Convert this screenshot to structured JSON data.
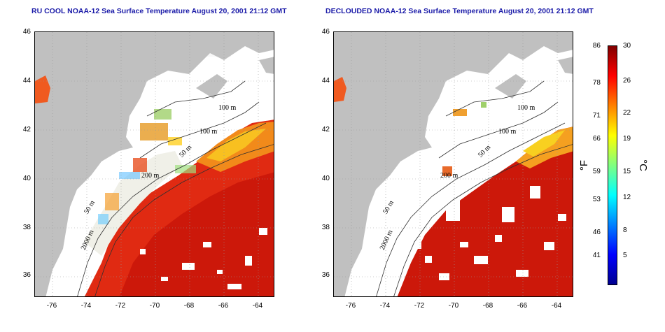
{
  "titles": {
    "left": "RU COOL NOAA-12 Sea Surface Temperature August 20, 2001 21:12 GMT",
    "right": "DECLOUDED NOAA-12 Sea Surface Temperature August 20, 2001 21:12 GMT"
  },
  "axes": {
    "lat_ticks": [
      "46",
      "44",
      "42",
      "40",
      "38",
      "36"
    ],
    "lon_ticks": [
      "-76",
      "-74",
      "-72",
      "-70",
      "-68",
      "-66",
      "-64"
    ],
    "lat_range": [
      35,
      46
    ],
    "lon_range": [
      -77,
      -63
    ]
  },
  "contour_labels": {
    "left": [
      "100 m",
      "100 m",
      "50 m",
      "200 m",
      "50 m",
      "2000 m"
    ],
    "right": [
      "100 m",
      "100 m",
      "50 m",
      "200 m",
      "50 m",
      "2000 m"
    ]
  },
  "colorbar": {
    "fahrenheit_ticks": [
      "86",
      "78",
      "71",
      "66",
      "59",
      "53",
      "46",
      "41"
    ],
    "celsius_ticks": [
      "30",
      "26",
      "22",
      "19",
      "15",
      "12",
      "8",
      "5"
    ],
    "fahrenheit_unit": "°F",
    "celsius_unit": "°C",
    "range_celsius": [
      0,
      30
    ],
    "colors": [
      "#00008f",
      "#0000ff",
      "#0080ff",
      "#00ffff",
      "#80ff80",
      "#ffff00",
      "#ff8000",
      "#ff0000",
      "#800000"
    ]
  },
  "colors": {
    "land": "#c0c0c0",
    "cloud": "#ffffff",
    "warm_ocean": "#e82a10",
    "gulf_stream": "#cc1a0a",
    "slope_water": "#f8a020"
  }
}
